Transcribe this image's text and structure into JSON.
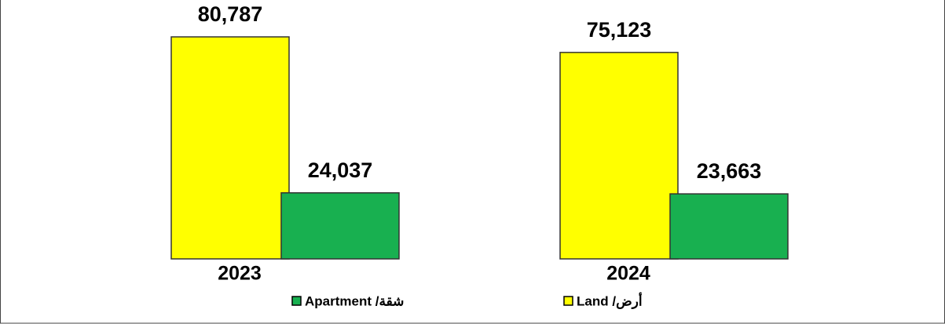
{
  "chart_data": {
    "type": "bar",
    "categories": [
      "2023",
      "2024"
    ],
    "series": [
      {
        "name": "Land /أرض",
        "color": "#ffff00",
        "values": [
          80787,
          75123
        ],
        "value_labels": [
          "80,787",
          "75,123"
        ]
      },
      {
        "name": "Apartment /شقة",
        "color": "#18b050",
        "values": [
          24037,
          23663
        ],
        "value_labels": [
          "24,037",
          "23,663"
        ]
      }
    ]
  }
}
